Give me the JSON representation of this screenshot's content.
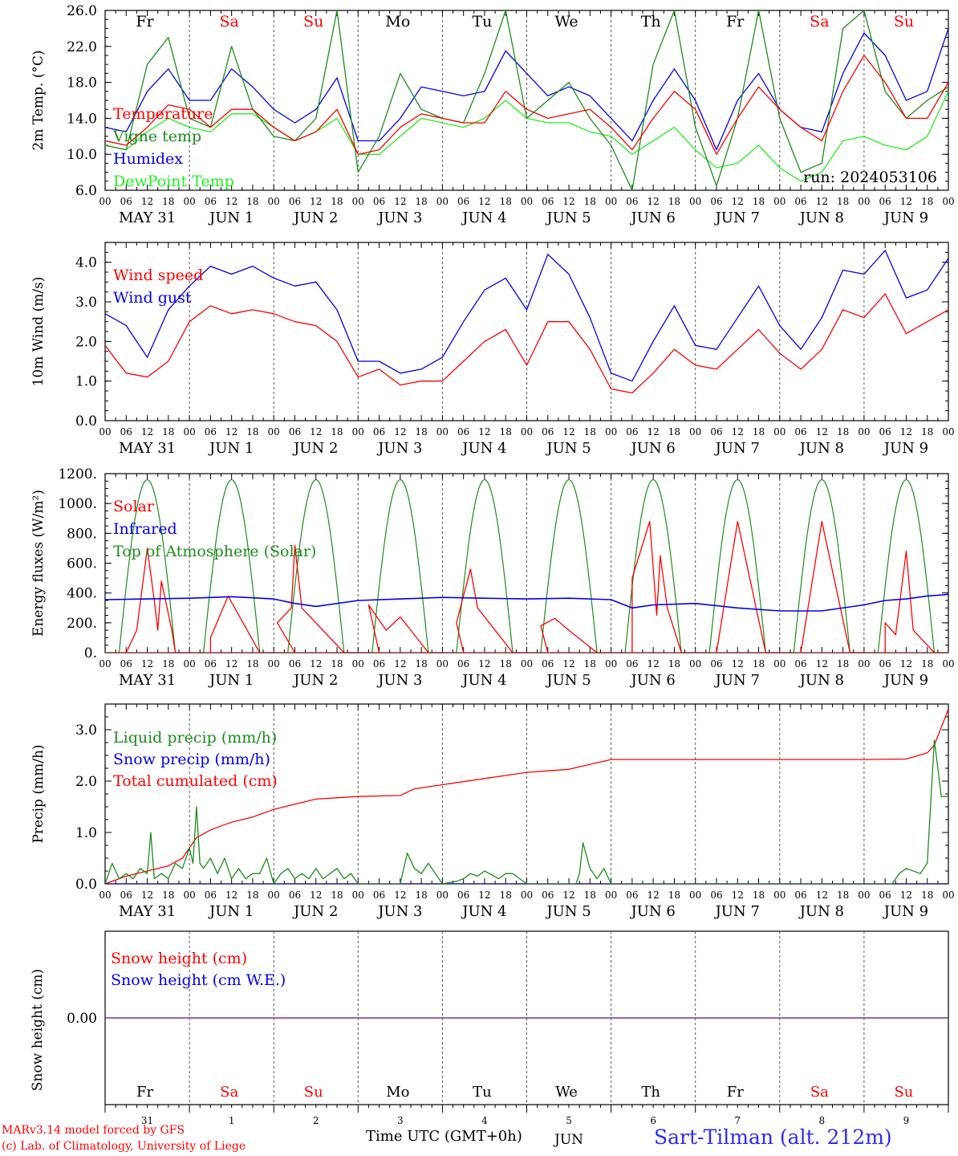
{
  "colors": {
    "red": "#ff0000",
    "green": "#1e8c1e",
    "blue": "#0000ee",
    "lightgreen": "#22ee22",
    "purple": "#7a2fa0",
    "black": "#000000"
  },
  "days": [
    "Fr",
    "Sa",
    "Su",
    "Mo",
    "Tu",
    "We",
    "Th",
    "Fr",
    "Sa",
    "Su"
  ],
  "weekend_days": [
    1,
    2,
    8,
    9
  ],
  "day_labels": [
    "MAY 31",
    "JUN 1",
    "JUN 2",
    "JUN 3",
    "JUN 4",
    "JUN 5",
    "JUN 6",
    "JUN 7",
    "JUN 8",
    "JUN 9"
  ],
  "hour_labels": [
    "00",
    "06",
    "12",
    "18"
  ],
  "last_hour_label": "00",
  "day_numbers": [
    "31",
    "1",
    "2",
    "3",
    "4",
    "5",
    "6",
    "7",
    "8",
    "9"
  ],
  "month_label": "JUN",
  "footer": {
    "credit1": "MARv3.14 model forced by GFS",
    "credit2": "(c) Lab. of Climatology, University of Liege",
    "xlabel": "Time UTC (GMT+0h)",
    "station": "Sart-Tilman (alt. 212m)"
  },
  "chart_data": [
    {
      "type": "line",
      "ylabel": "2m Temp. (°C)",
      "ylim": [
        6,
        26
      ],
      "yticks": [
        "6.0",
        "10.0",
        "14.0",
        "18.0",
        "22.0",
        "26.0"
      ],
      "annotation": "run: 2024053106",
      "x_unit": "hours since 2024-05-31 00 UTC",
      "series": [
        {
          "name": "Temperature",
          "color": "red",
          "x": [
            0,
            6,
            12,
            18,
            24,
            30,
            36,
            42,
            48,
            54,
            60,
            66,
            72,
            78,
            84,
            90,
            96,
            102,
            108,
            114,
            120,
            126,
            132,
            138,
            144,
            150,
            156,
            162,
            168,
            174,
            180,
            186,
            192,
            198,
            204,
            210,
            216,
            222,
            228,
            234,
            240
          ],
          "y": [
            11.5,
            11,
            13,
            15.5,
            15,
            13,
            15,
            15,
            13,
            11.5,
            12.5,
            15,
            10,
            10.5,
            13,
            14.5,
            14,
            13.5,
            13.5,
            17,
            15,
            14,
            14.5,
            15,
            13,
            10.5,
            14,
            17,
            15,
            10,
            14,
            17.5,
            15,
            13,
            11.5,
            17,
            21,
            18,
            14,
            14,
            18
          ]
        },
        {
          "name": "Vigne temp",
          "color": "green",
          "x": [
            0,
            6,
            12,
            18,
            24,
            30,
            36,
            42,
            48,
            54,
            60,
            66,
            72,
            78,
            84,
            90,
            96,
            102,
            108,
            114,
            120,
            126,
            132,
            138,
            144,
            150,
            156,
            162,
            168,
            174,
            180,
            186,
            192,
            198,
            204,
            210,
            216,
            222,
            228,
            234,
            240
          ],
          "y": [
            11,
            10.5,
            20,
            23,
            14,
            13,
            22,
            15,
            12,
            11.5,
            14,
            26,
            8,
            12,
            19,
            15,
            14,
            13.5,
            19,
            26,
            14,
            16,
            18,
            14,
            11,
            6,
            20,
            26,
            13,
            6.5,
            14,
            26,
            14,
            8,
            9,
            24,
            26,
            17,
            14,
            16,
            17.5
          ]
        },
        {
          "name": "Humidex",
          "color": "blue",
          "x": [
            0,
            6,
            12,
            18,
            24,
            30,
            36,
            42,
            48,
            54,
            60,
            66,
            72,
            78,
            84,
            90,
            96,
            102,
            108,
            114,
            120,
            126,
            132,
            138,
            144,
            150,
            156,
            162,
            168,
            174,
            180,
            186,
            192,
            198,
            204,
            210,
            216,
            222,
            228,
            234,
            240
          ],
          "y": [
            13,
            12.5,
            17,
            19.5,
            16,
            16,
            19.5,
            17.5,
            15,
            13.5,
            15,
            18.5,
            11.5,
            11.5,
            14,
            17.5,
            17,
            16.5,
            17,
            21.5,
            19,
            16.5,
            17.5,
            16.5,
            14,
            11.5,
            16,
            19.5,
            16,
            10.5,
            16,
            19,
            15,
            13,
            12.5,
            19,
            23.5,
            21,
            16,
            17,
            24
          ]
        },
        {
          "name": "DewPoint Temp",
          "color": "lightgreen",
          "x": [
            0,
            6,
            12,
            18,
            24,
            30,
            36,
            42,
            48,
            54,
            60,
            66,
            72,
            78,
            84,
            90,
            96,
            102,
            108,
            114,
            120,
            126,
            132,
            138,
            144,
            150,
            156,
            162,
            168,
            174,
            180,
            186,
            192,
            198,
            204,
            210,
            216,
            222,
            228,
            234,
            240
          ],
          "y": [
            11,
            10.5,
            12.5,
            14,
            13,
            12.5,
            14.5,
            14.5,
            13,
            11.5,
            12.5,
            14,
            10,
            10,
            12,
            14,
            13.5,
            13,
            14,
            16,
            14,
            13.5,
            13.5,
            12.5,
            12,
            10,
            11.5,
            13,
            10.5,
            8.5,
            9,
            11,
            8.5,
            7,
            8,
            11.5,
            12,
            11,
            10.5,
            12,
            17
          ]
        }
      ]
    },
    {
      "type": "line",
      "ylabel": "10m Wind (m/s)",
      "ylim": [
        0,
        4.5
      ],
      "yticks": [
        "0.0",
        "1.0",
        "2.0",
        "3.0",
        "4.0"
      ],
      "series": [
        {
          "name": "Wind speed",
          "color": "red",
          "x": [
            0,
            6,
            12,
            18,
            24,
            30,
            36,
            42,
            48,
            54,
            60,
            66,
            72,
            78,
            84,
            90,
            96,
            102,
            108,
            114,
            120,
            126,
            132,
            138,
            144,
            150,
            156,
            162,
            168,
            174,
            180,
            186,
            192,
            198,
            204,
            210,
            216,
            222,
            228,
            234,
            240
          ],
          "y": [
            1.9,
            1.2,
            1.1,
            1.5,
            2.5,
            2.9,
            2.7,
            2.8,
            2.7,
            2.5,
            2.4,
            2.0,
            1.1,
            1.3,
            0.9,
            1.0,
            1.0,
            1.5,
            2.0,
            2.3,
            1.4,
            2.5,
            2.5,
            1.8,
            0.8,
            0.7,
            1.2,
            1.8,
            1.4,
            1.3,
            1.8,
            2.3,
            1.7,
            1.3,
            1.8,
            2.8,
            2.6,
            3.2,
            2.2,
            2.5,
            2.8
          ]
        },
        {
          "name": "Wind gust",
          "color": "blue",
          "x": [
            0,
            6,
            12,
            18,
            24,
            30,
            36,
            42,
            48,
            54,
            60,
            66,
            72,
            78,
            84,
            90,
            96,
            102,
            108,
            114,
            120,
            126,
            132,
            138,
            144,
            150,
            156,
            162,
            168,
            174,
            180,
            186,
            192,
            198,
            204,
            210,
            216,
            222,
            228,
            234,
            240
          ],
          "y": [
            2.7,
            2.4,
            1.6,
            2.8,
            3.4,
            3.9,
            3.7,
            3.9,
            3.6,
            3.4,
            3.5,
            2.8,
            1.5,
            1.5,
            1.2,
            1.3,
            1.6,
            2.5,
            3.3,
            3.6,
            2.8,
            4.2,
            3.7,
            2.6,
            1.2,
            1.0,
            2.0,
            2.9,
            1.9,
            1.8,
            2.6,
            3.4,
            2.4,
            1.8,
            2.6,
            3.8,
            3.7,
            4.3,
            3.1,
            3.3,
            4.1
          ]
        }
      ]
    },
    {
      "type": "line",
      "ylabel": "Energy fluxes (W/m²)",
      "ylim": [
        0,
        1200
      ],
      "yticks": [
        "0.",
        "200.",
        "400.",
        "600.",
        "800.",
        "1000.",
        "1200."
      ],
      "toa_peak": 1160,
      "solar_peaks": [
        [
          [
            9,
            150
          ],
          [
            12,
            700
          ],
          [
            14,
            350
          ],
          [
            15,
            150
          ],
          [
            16,
            480
          ],
          [
            19,
            150
          ]
        ],
        [
          [
            30,
            100
          ],
          [
            35,
            380
          ]
        ],
        [
          [
            49,
            200
          ],
          [
            53,
            300
          ],
          [
            54,
            720
          ],
          [
            56,
            300
          ]
        ],
        [
          [
            75,
            320
          ],
          [
            80,
            150
          ],
          [
            84,
            240
          ]
        ],
        [
          [
            100,
            200
          ],
          [
            104,
            560
          ],
          [
            106,
            300
          ]
        ],
        [
          [
            124,
            180
          ],
          [
            128,
            230
          ],
          [
            132,
            150
          ]
        ],
        [
          [
            150,
            500
          ],
          [
            155,
            880
          ],
          [
            157,
            250
          ],
          [
            158,
            650
          ],
          [
            160,
            300
          ]
        ],
        [
          [
            180,
            880
          ]
        ],
        [
          [
            204,
            880
          ]
        ],
        [
          [
            222,
            200
          ],
          [
            225,
            120
          ],
          [
            228,
            680
          ],
          [
            230,
            150
          ]
        ]
      ],
      "infrared": {
        "x": [
          0,
          12,
          24,
          36,
          48,
          54,
          60,
          72,
          84,
          96,
          108,
          120,
          132,
          144,
          150,
          156,
          168,
          180,
          192,
          204,
          216,
          222,
          228,
          234,
          240
        ],
        "y": [
          355,
          360,
          365,
          375,
          360,
          330,
          310,
          350,
          360,
          370,
          365,
          360,
          365,
          355,
          300,
          320,
          330,
          300,
          280,
          280,
          320,
          350,
          360,
          380,
          390
        ]
      },
      "series": [
        {
          "name": "Solar",
          "color": "red"
        },
        {
          "name": "Infrared",
          "color": "blue"
        },
        {
          "name": "Top of Atmosphere (Solar)",
          "color": "green"
        }
      ]
    },
    {
      "type": "line",
      "ylabel": "Precip (mm/h)",
      "ylim": [
        0,
        3.5
      ],
      "yticks": [
        "0.0",
        "1.0",
        "2.0",
        "3.0"
      ],
      "series": [
        {
          "name": "Liquid precip (mm/h)",
          "color": "green",
          "x": [
            0,
            2,
            4,
            6,
            8,
            10,
            12,
            13,
            14,
            16,
            18,
            20,
            22,
            24,
            25,
            26,
            27,
            28,
            30,
            32,
            34,
            36,
            38,
            40,
            42,
            44,
            46,
            48,
            50,
            52,
            54,
            56,
            58,
            60,
            62,
            64,
            66,
            68,
            70,
            72,
            84,
            86,
            88,
            90,
            92,
            96,
            100,
            102,
            104,
            106,
            108,
            112,
            114,
            116,
            118,
            120,
            126,
            134,
            135,
            136,
            138,
            140,
            142,
            144,
            168,
            210,
            212,
            214,
            216,
            218,
            224,
            226,
            228,
            232,
            234,
            236,
            238,
            240
          ],
          "y": [
            0,
            0.4,
            0.1,
            0.2,
            0.1,
            0.3,
            0.2,
            1.0,
            0.1,
            0.2,
            0.1,
            0.4,
            0.3,
            0.7,
            0.4,
            1.5,
            0.4,
            0.3,
            0.5,
            0.2,
            0.5,
            0.1,
            0.3,
            0.1,
            0.2,
            0.2,
            0.5,
            0,
            0.2,
            0.3,
            0.1,
            0.2,
            0.1,
            0.3,
            0.1,
            0.2,
            0.3,
            0.1,
            0.2,
            0,
            0,
            0.6,
            0.3,
            0.2,
            0.4,
            0,
            0.05,
            0.1,
            0.2,
            0.15,
            0.25,
            0.1,
            0.2,
            0.2,
            0.1,
            0,
            0,
            0,
            0.2,
            0.8,
            0.3,
            0.1,
            0.3,
            0,
            0,
            0,
            0,
            0,
            0,
            0,
            0,
            0.2,
            0.3,
            0.2,
            0.4,
            2.8,
            1.7,
            1.7
          ]
        },
        {
          "name": "Snow precip (mm/h)",
          "color": "blue",
          "x": [
            0,
            240
          ],
          "y": [
            0,
            0
          ]
        },
        {
          "name": "Total cumulated (cm)",
          "color": "red",
          "x": [
            0,
            6,
            12,
            18,
            22,
            24,
            26,
            30,
            36,
            42,
            48,
            54,
            60,
            72,
            84,
            88,
            96,
            108,
            120,
            126,
            132,
            144,
            168,
            192,
            216,
            228,
            234,
            236,
            240
          ],
          "y": [
            0,
            0.15,
            0.25,
            0.35,
            0.5,
            0.7,
            0.9,
            1.05,
            1.2,
            1.3,
            1.45,
            1.55,
            1.65,
            1.7,
            1.72,
            1.85,
            1.93,
            2.05,
            2.17,
            2.2,
            2.23,
            2.42,
            2.42,
            2.42,
            2.42,
            2.43,
            2.55,
            2.7,
            3.4
          ]
        }
      ]
    },
    {
      "type": "line",
      "ylabel": "Snow height (cm)",
      "ylim": [
        -1,
        1
      ],
      "yticks": [
        "0.00"
      ],
      "series": [
        {
          "name": "Snow height (cm)",
          "color": "red",
          "x": [
            0,
            240
          ],
          "y": [
            0,
            0
          ]
        },
        {
          "name": "Snow height (cm W.E.)",
          "color": "blue",
          "x": [
            0,
            240
          ],
          "y": [
            0,
            0
          ]
        }
      ]
    }
  ]
}
